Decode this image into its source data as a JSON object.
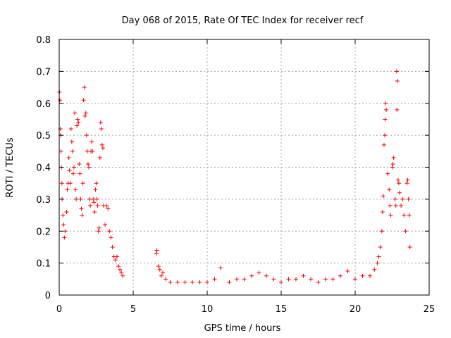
{
  "chart_data": {
    "type": "scatter",
    "title": "Day 068 of 2015, Rate Of TEC Index for receiver recf",
    "xlabel": "GPS time / hours",
    "ylabel": "ROTI / TECUs",
    "xlim": [
      0,
      25
    ],
    "ylim": [
      0,
      0.8
    ],
    "x_ticks": [
      0,
      5,
      10,
      15,
      20,
      25
    ],
    "x_tick_labels": [
      "0",
      "5",
      "10",
      "15",
      "20",
      "25"
    ],
    "y_ticks": [
      0,
      0.1,
      0.2,
      0.3,
      0.4,
      0.5,
      0.6,
      0.7,
      0.8
    ],
    "y_tick_labels": [
      "0",
      "0.1",
      "0.2",
      "0.3",
      "0.4",
      "0.5",
      "0.6",
      "0.7",
      "0.8"
    ],
    "grid": true,
    "marker": "+",
    "color": "#ff0000",
    "series": [
      {
        "name": "ROTI",
        "points": [
          [
            0.02,
            0.635
          ],
          [
            0.05,
            0.61
          ],
          [
            0.08,
            0.52
          ],
          [
            0.1,
            0.5
          ],
          [
            0.12,
            0.45
          ],
          [
            0.15,
            0.4
          ],
          [
            0.18,
            0.35
          ],
          [
            0.2,
            0.3
          ],
          [
            0.25,
            0.25
          ],
          [
            0.3,
            0.22
          ],
          [
            0.35,
            0.18
          ],
          [
            0.4,
            0.2
          ],
          [
            0.5,
            0.26
          ],
          [
            0.55,
            0.33
          ],
          [
            0.6,
            0.35
          ],
          [
            0.65,
            0.43
          ],
          [
            0.7,
            0.39
          ],
          [
            0.75,
            0.35
          ],
          [
            0.8,
            0.52
          ],
          [
            0.85,
            0.48
          ],
          [
            0.9,
            0.45
          ],
          [
            0.95,
            0.38
          ],
          [
            1.0,
            0.4
          ],
          [
            1.05,
            0.57
          ],
          [
            1.1,
            0.33
          ],
          [
            1.15,
            0.3
          ],
          [
            1.2,
            0.53
          ],
          [
            1.25,
            0.55
          ],
          [
            1.3,
            0.54
          ],
          [
            1.35,
            0.41
          ],
          [
            1.4,
            0.38
          ],
          [
            1.45,
            0.3
          ],
          [
            1.5,
            0.27
          ],
          [
            1.55,
            0.25
          ],
          [
            1.6,
            0.35
          ],
          [
            1.65,
            0.61
          ],
          [
            1.7,
            0.65
          ],
          [
            1.75,
            0.56
          ],
          [
            1.8,
            0.57
          ],
          [
            1.85,
            0.5
          ],
          [
            1.9,
            0.45
          ],
          [
            1.95,
            0.41
          ],
          [
            2.0,
            0.4
          ],
          [
            2.05,
            0.3
          ],
          [
            2.1,
            0.28
          ],
          [
            2.15,
            0.45
          ],
          [
            2.2,
            0.48
          ],
          [
            2.25,
            0.45
          ],
          [
            2.3,
            0.3
          ],
          [
            2.35,
            0.29
          ],
          [
            2.4,
            0.26
          ],
          [
            2.45,
            0.33
          ],
          [
            2.5,
            0.35
          ],
          [
            2.55,
            0.3
          ],
          [
            2.6,
            0.28
          ],
          [
            2.65,
            0.2
          ],
          [
            2.7,
            0.21
          ],
          [
            2.75,
            0.43
          ],
          [
            2.8,
            0.54
          ],
          [
            2.85,
            0.52
          ],
          [
            2.9,
            0.47
          ],
          [
            2.95,
            0.46
          ],
          [
            3.0,
            0.28
          ],
          [
            3.1,
            0.22
          ],
          [
            3.2,
            0.28
          ],
          [
            3.3,
            0.27
          ],
          [
            3.4,
            0.2
          ],
          [
            3.5,
            0.18
          ],
          [
            3.6,
            0.15
          ],
          [
            3.7,
            0.12
          ],
          [
            3.8,
            0.11
          ],
          [
            3.9,
            0.12
          ],
          [
            4.0,
            0.09
          ],
          [
            4.1,
            0.08
          ],
          [
            4.2,
            0.07
          ],
          [
            4.3,
            0.06
          ],
          [
            6.55,
            0.13
          ],
          [
            6.6,
            0.14
          ],
          [
            6.7,
            0.09
          ],
          [
            6.8,
            0.08
          ],
          [
            6.9,
            0.06
          ],
          [
            7.0,
            0.07
          ],
          [
            7.2,
            0.05
          ],
          [
            7.5,
            0.04
          ],
          [
            8.0,
            0.04
          ],
          [
            8.5,
            0.04
          ],
          [
            9.0,
            0.04
          ],
          [
            9.5,
            0.04
          ],
          [
            10.0,
            0.04
          ],
          [
            10.5,
            0.05
          ],
          [
            10.9,
            0.085
          ],
          [
            11.5,
            0.04
          ],
          [
            12.0,
            0.05
          ],
          [
            12.5,
            0.05
          ],
          [
            13.0,
            0.06
          ],
          [
            13.5,
            0.07
          ],
          [
            14.0,
            0.06
          ],
          [
            14.5,
            0.05
          ],
          [
            15.0,
            0.04
          ],
          [
            15.5,
            0.05
          ],
          [
            16.0,
            0.05
          ],
          [
            16.5,
            0.06
          ],
          [
            17.0,
            0.05
          ],
          [
            17.5,
            0.04
          ],
          [
            18.0,
            0.05
          ],
          [
            18.5,
            0.05
          ],
          [
            19.0,
            0.06
          ],
          [
            19.5,
            0.075
          ],
          [
            20.0,
            0.05
          ],
          [
            20.5,
            0.06
          ],
          [
            21.0,
            0.06
          ],
          [
            21.3,
            0.08
          ],
          [
            21.5,
            0.1
          ],
          [
            21.6,
            0.12
          ],
          [
            21.7,
            0.15
          ],
          [
            21.8,
            0.2
          ],
          [
            21.85,
            0.26
          ],
          [
            21.9,
            0.31
          ],
          [
            21.95,
            0.47
          ],
          [
            22.0,
            0.5
          ],
          [
            22.02,
            0.55
          ],
          [
            22.05,
            0.6
          ],
          [
            22.1,
            0.58
          ],
          [
            22.2,
            0.38
          ],
          [
            22.3,
            0.33
          ],
          [
            22.35,
            0.28
          ],
          [
            22.4,
            0.25
          ],
          [
            22.5,
            0.4
          ],
          [
            22.55,
            0.41
          ],
          [
            22.6,
            0.43
          ],
          [
            22.7,
            0.3
          ],
          [
            22.75,
            0.28
          ],
          [
            22.8,
            0.7
          ],
          [
            22.82,
            0.58
          ],
          [
            22.85,
            0.67
          ],
          [
            22.9,
            0.36
          ],
          [
            22.95,
            0.35
          ],
          [
            23.0,
            0.32
          ],
          [
            23.1,
            0.28
          ],
          [
            23.2,
            0.3
          ],
          [
            23.3,
            0.25
          ],
          [
            23.4,
            0.2
          ],
          [
            23.5,
            0.35
          ],
          [
            23.55,
            0.36
          ],
          [
            23.6,
            0.3
          ],
          [
            23.65,
            0.25
          ],
          [
            23.7,
            0.15
          ]
        ]
      }
    ]
  }
}
